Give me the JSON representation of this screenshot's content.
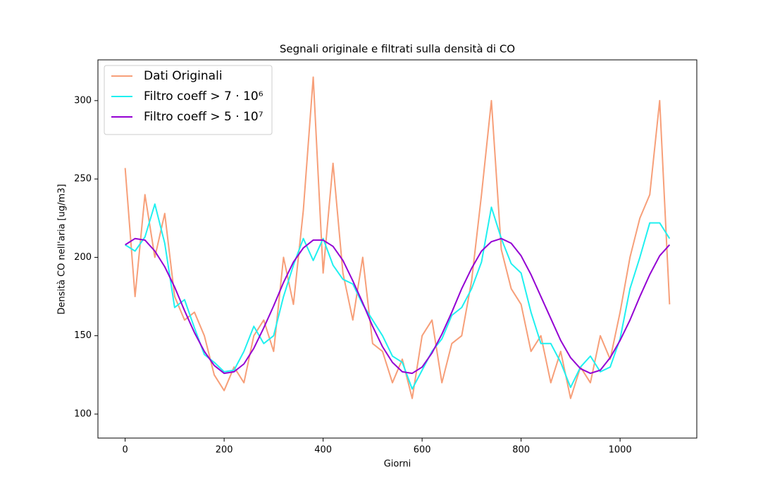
{
  "chart_data": {
    "type": "line",
    "title": "Segnali originale e filtrati sulla densità di CO",
    "x_label": "Giorni",
    "y_label": "Densità CO nell'aria [ug/m3]",
    "x": [
      0,
      20,
      40,
      60,
      80,
      100,
      120,
      140,
      160,
      180,
      200,
      220,
      240,
      260,
      280,
      300,
      320,
      340,
      360,
      380,
      400,
      420,
      440,
      460,
      480,
      500,
      520,
      540,
      560,
      580,
      600,
      620,
      640,
      660,
      680,
      700,
      720,
      740,
      760,
      780,
      800,
      820,
      840,
      860,
      880,
      900,
      920,
      940,
      960,
      980,
      1000,
      1020,
      1040,
      1060,
      1080,
      1100
    ],
    "series": [
      {
        "name": "Dati Originali",
        "color": "#f79f79",
        "values": [
          257,
          175,
          240,
          200,
          228,
          175,
          160,
          165,
          150,
          125,
          115,
          130,
          120,
          150,
          160,
          140,
          200,
          170,
          230,
          315,
          190,
          260,
          190,
          160,
          200,
          145,
          140,
          120,
          135,
          110,
          150,
          160,
          120,
          145,
          150,
          185,
          240,
          300,
          205,
          180,
          170,
          140,
          150,
          120,
          140,
          110,
          130,
          120,
          150,
          135,
          165,
          200,
          225,
          240,
          300,
          170
        ]
      },
      {
        "name": "Filtro coeff > 7 · 10⁶",
        "color": "#1ff0f0",
        "values": [
          208,
          204,
          213,
          234,
          209,
          168,
          173,
          155,
          138,
          133,
          127,
          128,
          140,
          156,
          145,
          150,
          175,
          195,
          212,
          198,
          212,
          195,
          186,
          183,
          170,
          160,
          150,
          137,
          133,
          116,
          128,
          140,
          148,
          163,
          168,
          180,
          197,
          232,
          212,
          196,
          190,
          165,
          145,
          145,
          133,
          117,
          130,
          137,
          127,
          130,
          148,
          180,
          200,
          222,
          222,
          212
        ]
      },
      {
        "name": "Filtro coeff > 5 · 10⁷",
        "color": "#9400d3",
        "values": [
          208,
          212,
          211,
          204,
          194,
          181,
          166,
          152,
          140,
          131,
          126,
          127,
          132,
          142,
          155,
          169,
          184,
          197,
          206,
          211,
          211,
          207,
          198,
          185,
          171,
          156,
          143,
          133,
          127,
          126,
          130,
          139,
          151,
          165,
          180,
          193,
          204,
          210,
          212,
          209,
          201,
          189,
          175,
          161,
          147,
          136,
          129,
          126,
          128,
          136,
          147,
          160,
          175,
          189,
          201,
          208
        ]
      }
    ],
    "xlim": [
      -55,
      1155
    ],
    "ylim": [
      84.7,
      326
    ],
    "xticks": [
      0,
      200,
      400,
      600,
      800,
      1000
    ],
    "yticks": [
      100,
      150,
      200,
      250,
      300
    ],
    "grid": false,
    "legend": "upper-left"
  }
}
